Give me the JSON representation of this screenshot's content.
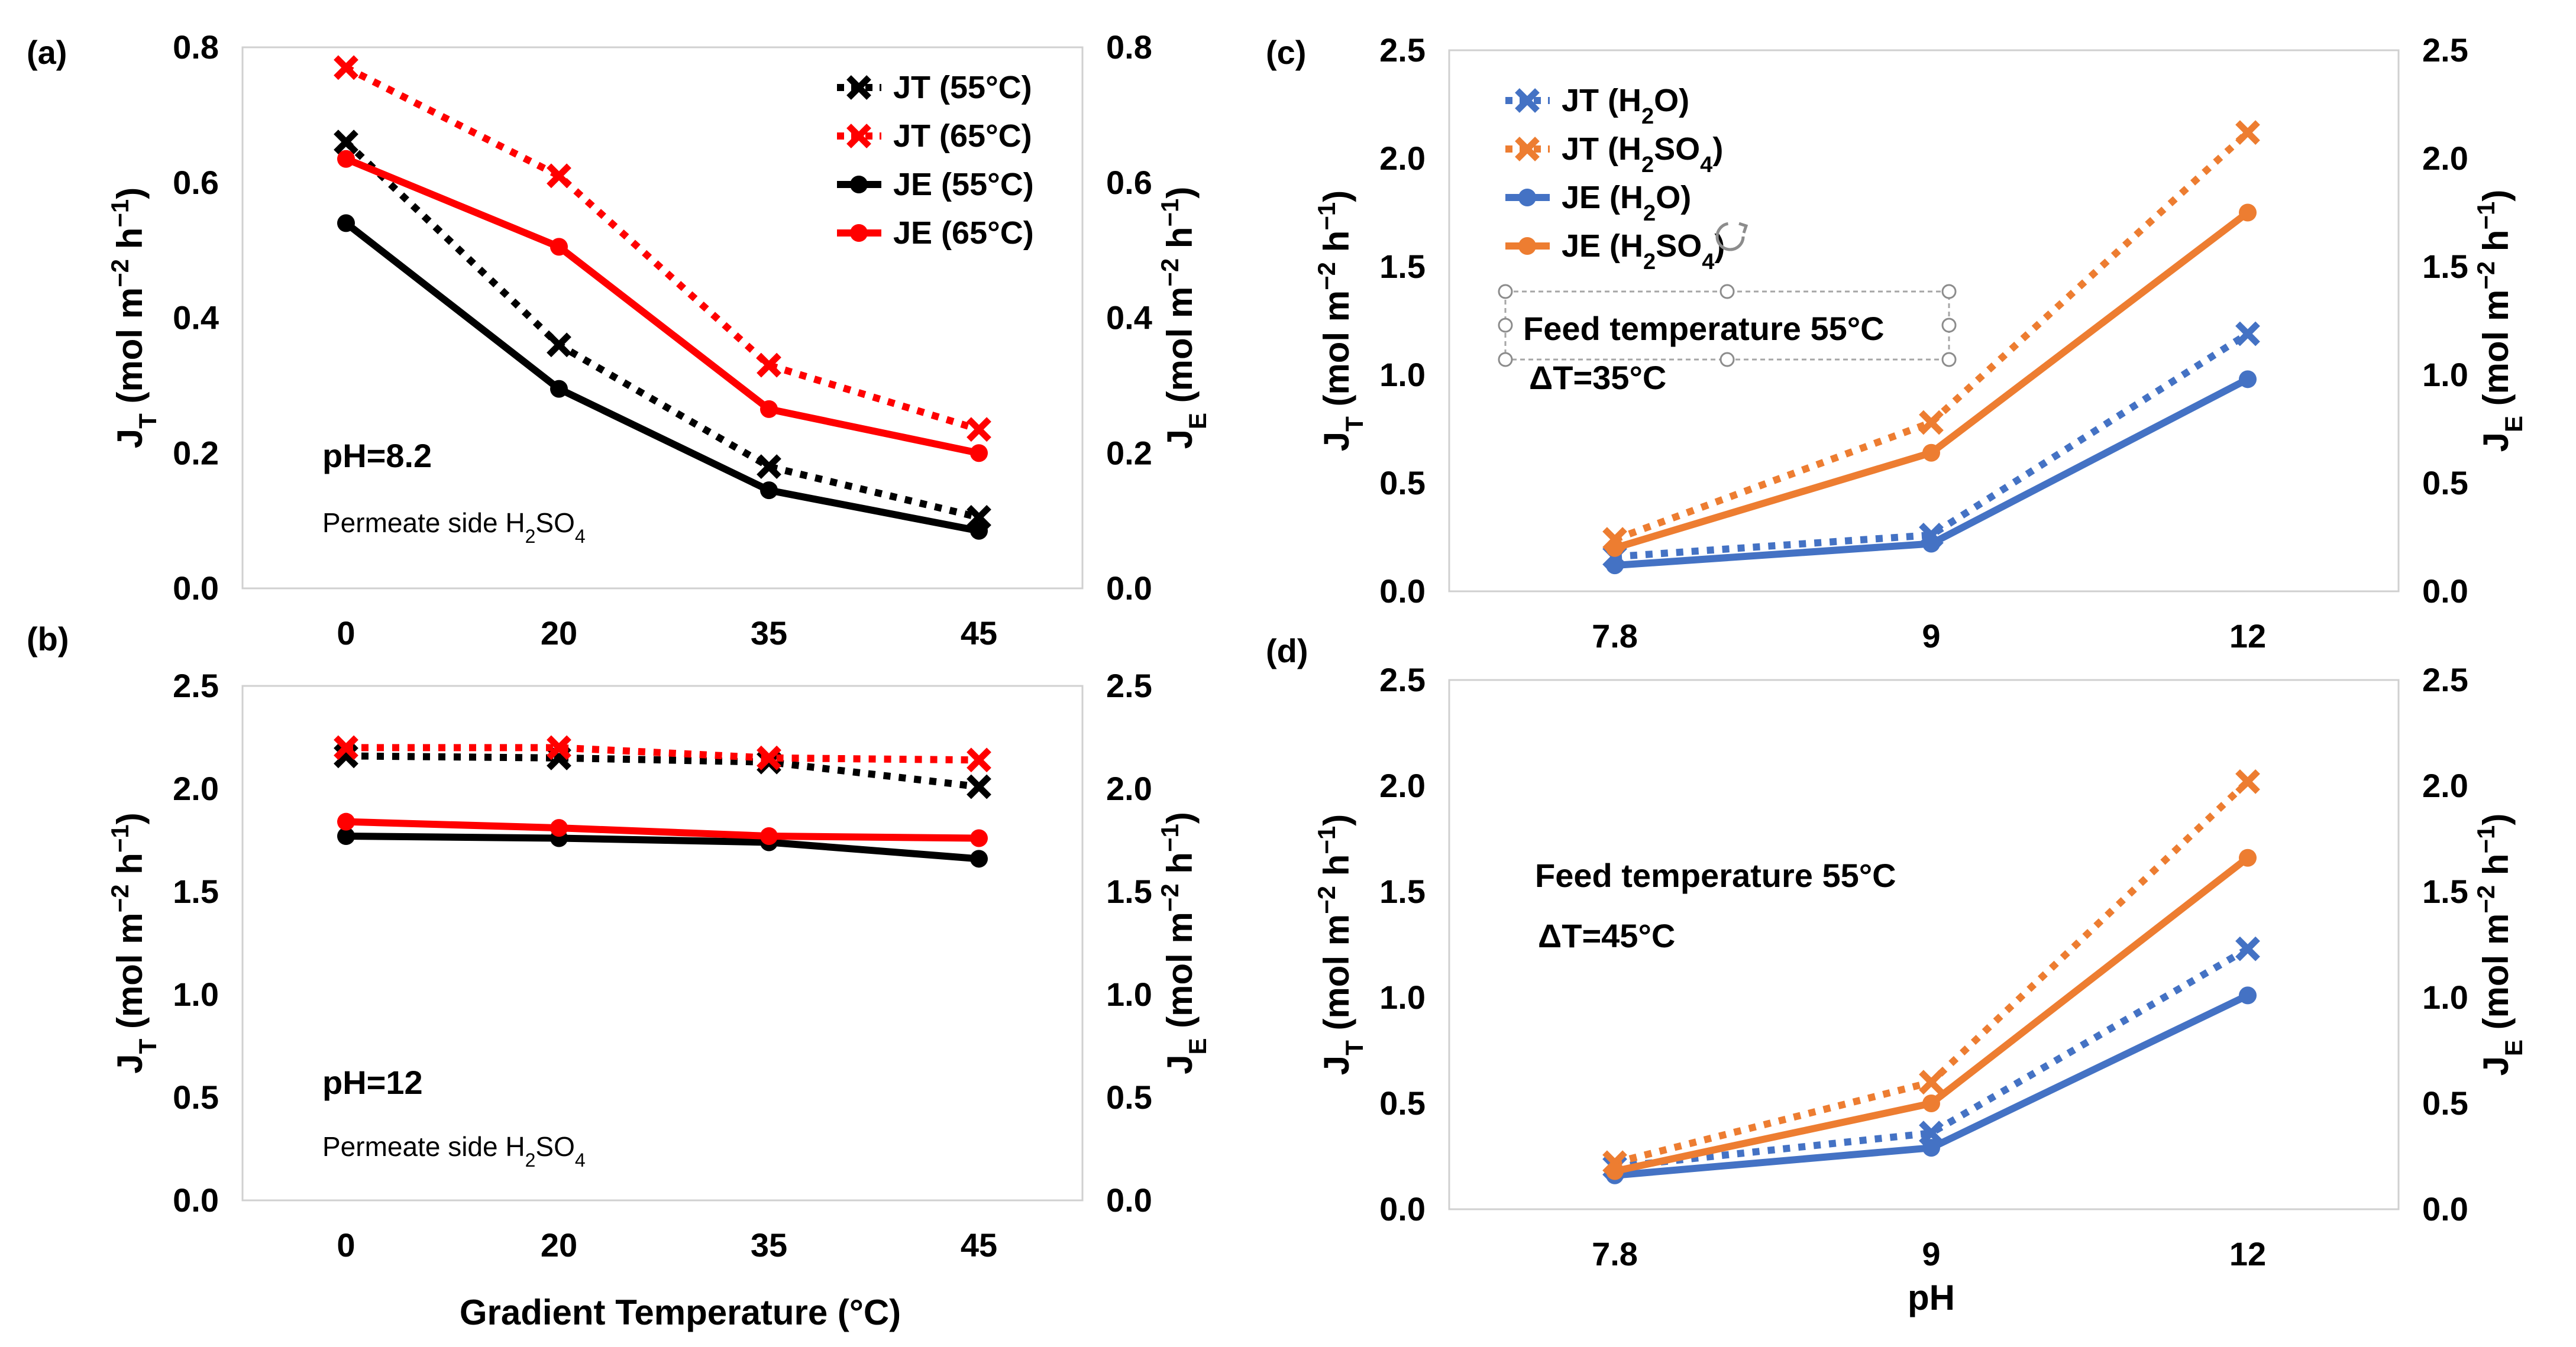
{
  "chart_data": [
    {
      "type": "line",
      "panel_label": "(a)",
      "xlabel": "",
      "ylabel_left": "J_T (mol m⁻² h⁻¹)",
      "ylabel_right": "J_E (mol m⁻² h⁻¹)",
      "categories": [
        "0",
        "20",
        "35",
        "45"
      ],
      "ylim": [
        0,
        0.8
      ],
      "yticks": [
        "0.0",
        "0.2",
        "0.4",
        "0.6",
        "0.8"
      ],
      "series": [
        {
          "name": "JT (55°C)",
          "color": "#000000",
          "style": "dotted",
          "marker": "x",
          "values": [
            0.66,
            0.36,
            0.18,
            0.105
          ]
        },
        {
          "name": "JT (65°C)",
          "color": "#ff0000",
          "style": "dotted",
          "marker": "x",
          "values": [
            0.77,
            0.61,
            0.33,
            0.235
          ]
        },
        {
          "name": "JE (55°C)",
          "color": "#000000",
          "style": "solid",
          "marker": "circle",
          "values": [
            0.54,
            0.295,
            0.145,
            0.085
          ]
        },
        {
          "name": "JE (65°C)",
          "color": "#ff0000",
          "style": "solid",
          "marker": "circle",
          "values": [
            0.635,
            0.505,
            0.265,
            0.2
          ]
        }
      ],
      "legend": "top-right",
      "annotations": [
        "pH=8.2",
        "Permeate side H₂SO₄"
      ]
    },
    {
      "type": "line",
      "panel_label": "(b)",
      "xlabel": "Gradient Temperature (°C)",
      "ylabel_left": "J_T (mol m⁻² h⁻¹)",
      "ylabel_right": "J_E (mol m⁻² h⁻¹)",
      "categories": [
        "0",
        "20",
        "35",
        "45"
      ],
      "ylim": [
        0,
        2.5
      ],
      "yticks": [
        "0.0",
        "0.5",
        "1.0",
        "1.5",
        "2.0",
        "2.5"
      ],
      "series": [
        {
          "name": "JT (55°C)",
          "color": "#000000",
          "style": "dotted",
          "marker": "x",
          "values": [
            2.16,
            2.15,
            2.13,
            2.01
          ]
        },
        {
          "name": "JT (65°C)",
          "color": "#ff0000",
          "style": "dotted",
          "marker": "x",
          "values": [
            2.2,
            2.2,
            2.15,
            2.14
          ]
        },
        {
          "name": "JE (55°C)",
          "color": "#000000",
          "style": "solid",
          "marker": "circle",
          "values": [
            1.77,
            1.76,
            1.74,
            1.66
          ]
        },
        {
          "name": "JE (65°C)",
          "color": "#ff0000",
          "style": "solid",
          "marker": "circle",
          "values": [
            1.84,
            1.81,
            1.77,
            1.76
          ]
        }
      ],
      "annotations": [
        "pH=12",
        "Permeate side H₂SO₄"
      ]
    },
    {
      "type": "line",
      "panel_label": "(c)",
      "xlabel": "",
      "ylabel_left": "J_T (mol m⁻² h⁻¹)",
      "ylabel_right": "J_E (mol m⁻² h⁻¹)",
      "categories": [
        "7.8",
        "9",
        "12"
      ],
      "ylim": [
        0,
        2.5
      ],
      "yticks": [
        "0.0",
        "0.5",
        "1.0",
        "1.5",
        "2.0",
        "2.5"
      ],
      "series": [
        {
          "name": "JT (H₂O)",
          "color": "#4472c4",
          "style": "dotted",
          "marker": "x",
          "values": [
            0.16,
            0.26,
            1.19
          ]
        },
        {
          "name": "JT (H₂SO₄)",
          "color": "#ed7d31",
          "style": "dotted",
          "marker": "x",
          "values": [
            0.24,
            0.78,
            2.12
          ]
        },
        {
          "name": "JE (H₂O)",
          "color": "#4472c4",
          "style": "solid",
          "marker": "circle",
          "values": [
            0.12,
            0.22,
            0.98
          ]
        },
        {
          "name": "JE (H₂SO₄)",
          "color": "#ed7d31",
          "style": "solid",
          "marker": "circle",
          "values": [
            0.2,
            0.64,
            1.75
          ]
        }
      ],
      "legend": "top-left",
      "annotations": [
        "Feed temperature 55°C",
        "ΔT=35°C"
      ]
    },
    {
      "type": "line",
      "panel_label": "(d)",
      "xlabel": "pH",
      "ylabel_left": "J_T (mol m⁻² h⁻¹)",
      "ylabel_right": "J_E (mol m⁻² h⁻¹)",
      "categories": [
        "7.8",
        "9",
        "12"
      ],
      "ylim": [
        0,
        2.5
      ],
      "yticks": [
        "0.0",
        "0.5",
        "1.0",
        "1.5",
        "2.0",
        "2.5"
      ],
      "series": [
        {
          "name": "JT (H₂O)",
          "color": "#4472c4",
          "style": "dotted",
          "marker": "x",
          "values": [
            0.2,
            0.36,
            1.23
          ]
        },
        {
          "name": "JT (H₂SO₄)",
          "color": "#ed7d31",
          "style": "dotted",
          "marker": "x",
          "values": [
            0.22,
            0.6,
            2.02
          ]
        },
        {
          "name": "JE (H₂O)",
          "color": "#4472c4",
          "style": "solid",
          "marker": "circle",
          "values": [
            0.16,
            0.29,
            1.01
          ]
        },
        {
          "name": "JE (H₂SO₄)",
          "color": "#ed7d31",
          "style": "solid",
          "marker": "circle",
          "values": [
            0.18,
            0.5,
            1.66
          ]
        }
      ],
      "annotations": [
        "Feed temperature 55°C",
        "ΔT=45°C"
      ]
    }
  ]
}
